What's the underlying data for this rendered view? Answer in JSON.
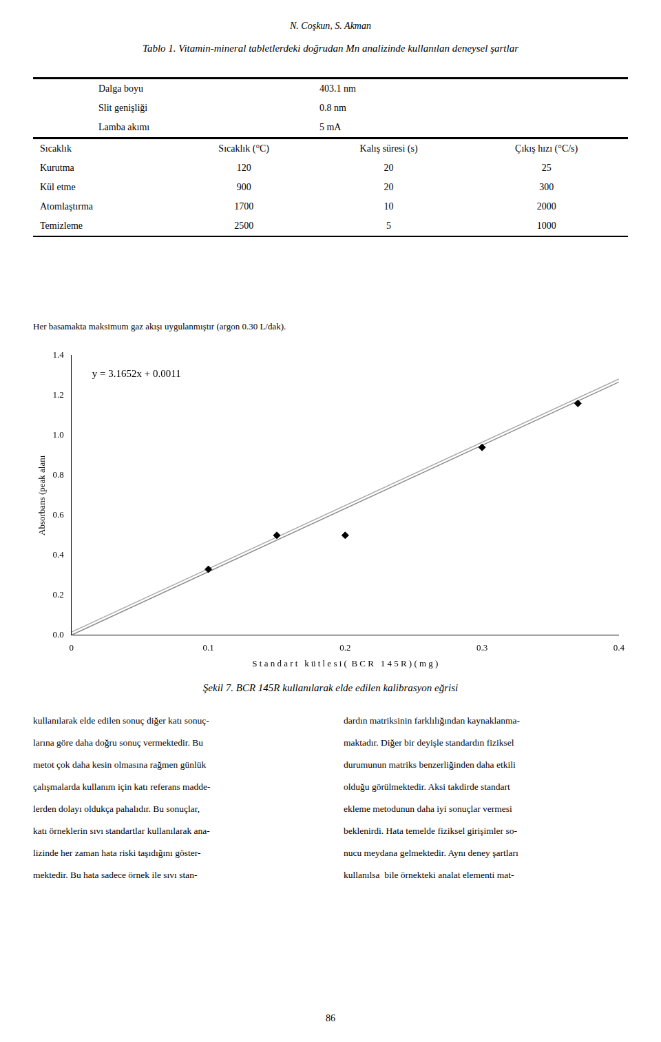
{
  "author": "N. Coşkun, S. Akman",
  "table": {
    "title": "Tablo 1. Vitamin-mineral tabletlerdeki doğrudan Mn analizinde kullanılan deneysel şartlar",
    "rows_top": [
      [
        "Dalga boyu",
        "403.1 nm"
      ],
      [
        "Slit genişliği",
        "0.8 nm"
      ],
      [
        "Lamba akımı",
        "5 mA"
      ]
    ],
    "header": [
      "Sıcaklık",
      "Sıcaklık (°C)",
      "Kalış süresi (s)",
      "Çıkış hızı (°C/s)"
    ],
    "rows": [
      [
        "Kurutma",
        "120",
        "20",
        "25"
      ],
      [
        "Kül etme",
        "900",
        "20",
        "300"
      ],
      [
        "Atomlaştırma",
        "1700",
        "10",
        "2000"
      ],
      [
        "Temizleme",
        "2500",
        "5",
        "1000"
      ]
    ]
  },
  "footnote": "Her basamakta maksimum gaz akışı uygulanmıştır (argon 0.30 L/dak).",
  "chart_data": {
    "type": "scatter",
    "xlabel": "S t a n d a r t   k ü t l e s i (  B C R   1 4 5 R ) ( m g )",
    "ylabel": "Absorbans (peak alanı",
    "annotations": [
      "y = 3.1652x + 0.0011"
    ],
    "xlim": [
      0,
      0.4
    ],
    "ylim": [
      0.0,
      1.4
    ],
    "xticks": [
      0,
      0.1,
      0.2,
      0.3,
      0.4
    ],
    "yticks": [
      {
        "value": 0,
        "label": "0.0"
      },
      0.2,
      0.4,
      0.6,
      0.8,
      {
        "value": 1,
        "label": "1.0"
      },
      1.2,
      1.4
    ],
    "grid": false,
    "series": [
      {
        "type": "scatter",
        "marker": "diamond",
        "color": "#000000",
        "x": [
          0.1,
          0.15,
          0.2,
          0.3,
          0.37
        ],
        "values": [
          0.33,
          0.5,
          0.5,
          0.94,
          1.16
        ]
      },
      {
        "type": "line",
        "color": "#888888",
        "x": [
          0.0,
          0.4
        ],
        "values": [
          0.0011,
          1.2672
        ]
      },
      {
        "type": "line",
        "color": "#aaaaaa",
        "x": [
          0.0,
          0.4
        ],
        "values": [
          0.0161,
          1.2822
        ]
      }
    ]
  },
  "caption": "Şekil 7.  BCR 145R kullanılarak elde edilen kalibrasyon eğrisi",
  "body_left": [
    "kullanılarak elde edilen sonuç diğer katı sonuç-",
    "larına göre daha doğru sonuç vermektedir. Bu",
    "metot çok daha kesin olmasına rağmen günlük",
    "çalışmalarda kullanım için katı referans madde-",
    "lerden dolayı oldukça pahalıdır. Bu sonuçlar,",
    "katı örneklerin sıvı standartlar kullanılarak ana-",
    "lizinde her zaman hata riski taşıdığını göster-",
    "mektedir. Bu hata sadece örnek ile sıvı stan-"
  ],
  "body_right": [
    "dardın matriksinin farklılığından kaynaklanma-",
    "maktadır. Diğer bir deyişle standardın fiziksel",
    "durumunun matriks benzerliğinden daha etkili",
    "olduğu görülmektedir. Aksi takdirde standart",
    "ekleme metodunun daha iyi sonuçlar vermesi",
    "beklenirdi. Hata temelde fiziksel girişimler so-",
    "nucu meydana gelmektedir. Aynı deney şartları",
    "kullanılsa  bile örnekteki analat elementi mat-"
  ],
  "page_number": "86"
}
